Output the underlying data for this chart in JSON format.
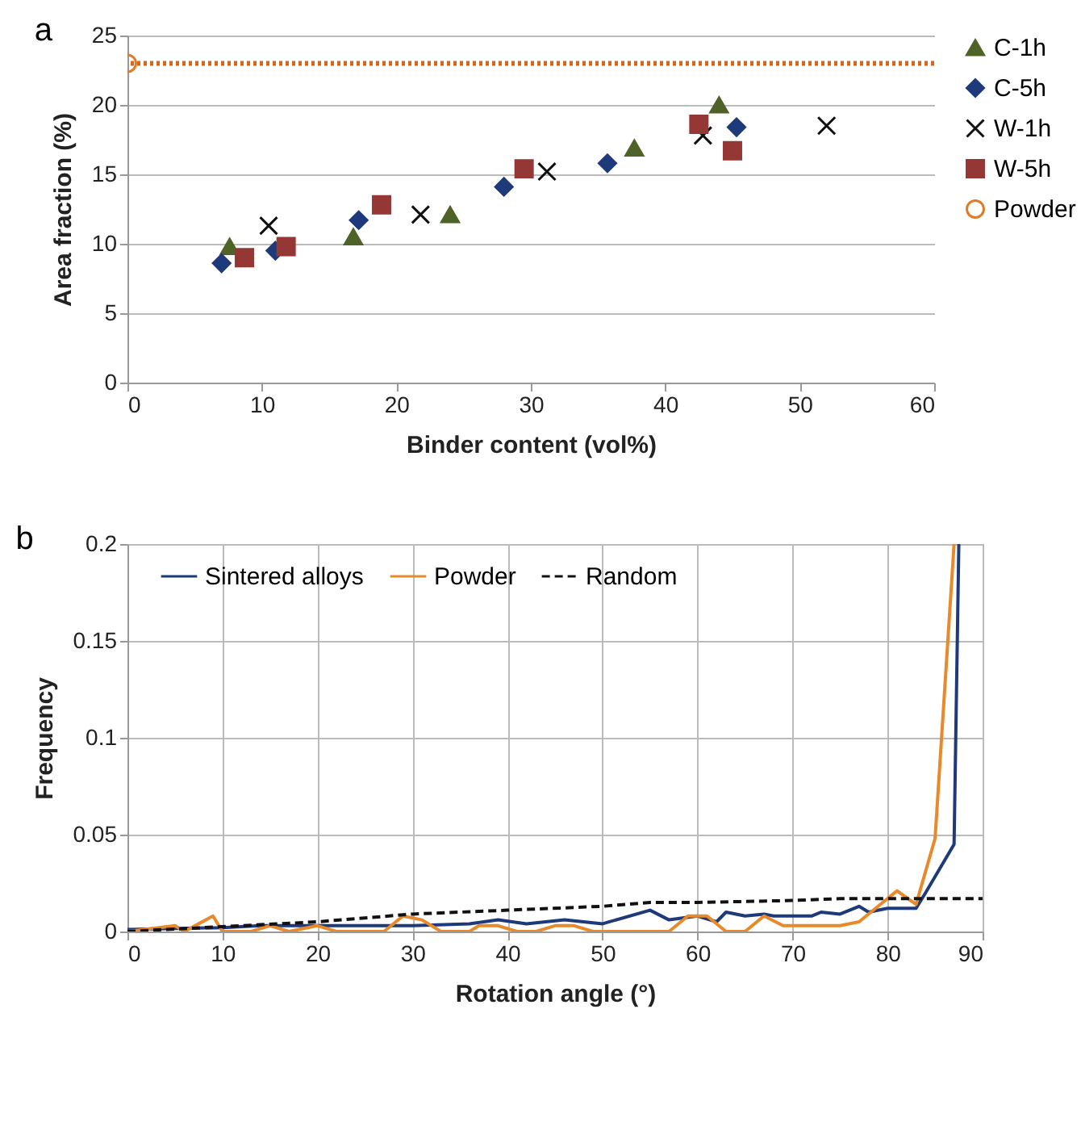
{
  "chart_data": [
    {
      "type": "scatter",
      "title": "a",
      "xlabel": "Binder content (vol%)",
      "ylabel": "Area fraction (%)",
      "xlim": [
        0,
        60
      ],
      "xticks": [
        0,
        10,
        20,
        30,
        40,
        50,
        60
      ],
      "ylim": [
        0,
        25
      ],
      "yticks": [
        0,
        5,
        10,
        15,
        20,
        25
      ],
      "grid": "y",
      "legend": "right",
      "series": [
        {
          "name": "C-1h",
          "color": "#4f6228",
          "marker": "triangle",
          "x": [
            7.6,
            16.8,
            24,
            37.7,
            44
          ],
          "values": [
            9.8,
            10.5,
            12.1,
            16.9,
            20.0
          ]
        },
        {
          "name": "C-5h",
          "color": "#1f3a7a",
          "marker": "diamond",
          "x": [
            7,
            11,
            17.2,
            28,
            35.7,
            45.3
          ],
          "values": [
            8.6,
            9.5,
            11.7,
            14.1,
            15.8,
            18.4
          ]
        },
        {
          "name": "W-1h",
          "color": "#111111",
          "marker": "cross",
          "x": [
            10.5,
            21.8,
            31.2,
            42.8,
            52
          ],
          "values": [
            11.3,
            12.1,
            15.2,
            17.8,
            18.5
          ]
        },
        {
          "name": "W-5h",
          "color": "#953735",
          "marker": "square",
          "x": [
            8.7,
            11.8,
            18.9,
            29.5,
            42.5,
            45
          ],
          "values": [
            9.0,
            9.8,
            12.8,
            15.4,
            18.6,
            16.7
          ]
        },
        {
          "name": "Powder",
          "color": "#e07b28",
          "marker": "circle",
          "x": [
            0
          ],
          "values": [
            23
          ]
        }
      ],
      "ref_lines": [
        {
          "axis": "y",
          "value": 23,
          "color": "#d2691e",
          "line_style": "dotted"
        }
      ]
    },
    {
      "type": "line",
      "title": "b",
      "xlabel": "Rotation angle (°)",
      "ylabel": "Frequency",
      "xlim": [
        0,
        90
      ],
      "xticks": [
        0,
        10,
        20,
        30,
        40,
        50,
        60,
        70,
        80,
        90
      ],
      "ylim": [
        0,
        0.2
      ],
      "yticks": [
        0,
        0.05,
        0.1,
        0.15,
        0.2
      ],
      "grid": true,
      "legend": "top",
      "marker": "none",
      "series": [
        {
          "name": "Sintered alloys",
          "color": "#1f3a7a",
          "line_style": "solid",
          "x": [
            0,
            10,
            14,
            20,
            28,
            30,
            36,
            39,
            42,
            46,
            50,
            55,
            57,
            60,
            62,
            63,
            65,
            67,
            68,
            72,
            73,
            75,
            77,
            78,
            80,
            83,
            84,
            87,
            87.5
          ],
          "values": [
            0.001,
            0.002,
            0.003,
            0.003,
            0.003,
            0.003,
            0.004,
            0.006,
            0.004,
            0.006,
            0.004,
            0.011,
            0.006,
            0.008,
            0.005,
            0.01,
            0.008,
            0.009,
            0.008,
            0.008,
            0.01,
            0.009,
            0.013,
            0.01,
            0.012,
            0.012,
            0.02,
            0.045,
            0.2
          ]
        },
        {
          "name": "Powder",
          "color": "#e8892c",
          "line_style": "solid",
          "x": [
            0,
            5,
            6,
            9,
            10,
            13,
            15,
            17,
            20,
            22,
            27,
            29,
            31,
            33,
            36,
            37,
            39,
            41,
            43,
            45,
            47,
            49,
            57,
            59,
            61,
            63,
            65,
            67,
            69,
            75,
            77,
            79,
            81,
            83,
            85,
            87
          ],
          "values": [
            0,
            0.003,
            0,
            0.008,
            0,
            0,
            0.003,
            0,
            0.003,
            0,
            0,
            0.008,
            0.006,
            0,
            0,
            0.003,
            0.003,
            0,
            0,
            0.003,
            0.003,
            0,
            0,
            0.008,
            0.008,
            0,
            0,
            0.008,
            0.003,
            0.003,
            0.005,
            0.013,
            0.021,
            0.014,
            0.048,
            0.2
          ]
        },
        {
          "name": "Random",
          "color": "#111111",
          "line_style": "dashed",
          "x": [
            0,
            20,
            30,
            40,
            50,
            55,
            60,
            70,
            75,
            90
          ],
          "values": [
            0,
            0.005,
            0.009,
            0.011,
            0.013,
            0.015,
            0.015,
            0.016,
            0.017,
            0.017
          ]
        }
      ]
    }
  ]
}
